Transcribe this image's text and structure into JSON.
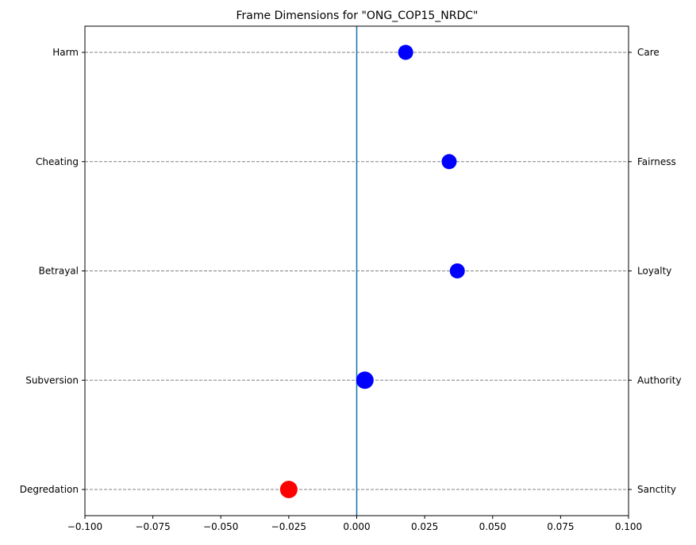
{
  "chart_data": {
    "type": "scatter",
    "title": "Frame Dimensions for \"ONG_COP15_NRDC\"",
    "xlabel": "",
    "ylabel": "",
    "xlim": [
      -0.1,
      0.1
    ],
    "x_ticks": [
      "−0.100",
      "−0.075",
      "−0.050",
      "−0.025",
      "0.000",
      "0.025",
      "0.050",
      "0.075",
      "0.100"
    ],
    "x_tick_values": [
      -0.1,
      -0.075,
      -0.05,
      -0.025,
      0.0,
      0.025,
      0.05,
      0.075,
      0.1
    ],
    "reference_line_x": 0,
    "grid": "horizontal dashed at each category",
    "points": [
      {
        "left_label": "Harm",
        "right_label": "Care",
        "value": 0.018,
        "color": "#0000ff"
      },
      {
        "left_label": "Cheating",
        "right_label": "Fairness",
        "value": 0.034,
        "color": "#0000ff"
      },
      {
        "left_label": "Betrayal",
        "right_label": "Loyalty",
        "value": 0.037,
        "color": "#0000ff"
      },
      {
        "left_label": "Subversion",
        "right_label": "Authority",
        "value": 0.003,
        "color": "#0000ff"
      },
      {
        "left_label": "Degredation",
        "right_label": "Sanctity",
        "value": -0.025,
        "color": "#ff0000"
      }
    ],
    "colors": {
      "positive": "#0000ff",
      "negative": "#ff0000",
      "reference_line": "#1f77b4",
      "grid": "#808080"
    }
  }
}
